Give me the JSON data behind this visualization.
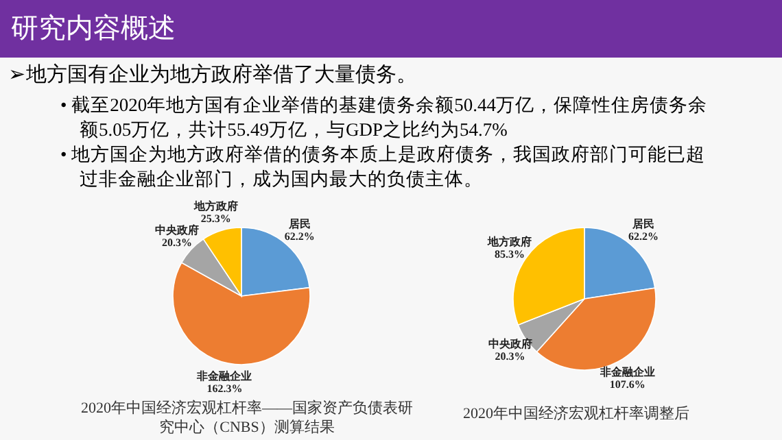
{
  "chart_data": [
    {
      "type": "other",
      "title": "研究内容概述",
      "annotations": [
        "➢地方国有企业为地方政府举借了大量债务。",
        "• 截至2020年地方国有企业举借的基建债务余额50.44万亿，保障性住房债务余额5.05万亿，共计55.49万亿，与GDP之比约为54.7%",
        "• 地方国企为地方政府举借的债务本质上是政府债务，我国政府部门可能已超过非金融企业部门，成为国内最大的负债主体。"
      ]
    },
    {
      "type": "pie",
      "title": "2020年中国经济宏观杠杆率——国家资产负债表研究中心（CNBS）测算结果",
      "categories": [
        "居民",
        "非金融企业",
        "中央政府",
        "地方政府"
      ],
      "values": [
        62.2,
        162.3,
        20.3,
        25.3
      ],
      "colors": [
        "#5b9bd5",
        "#ed7d31",
        "#a5a5a5",
        "#ffc000"
      ],
      "value_labels": [
        "62.2%",
        "162.3%",
        "20.3%",
        "25.3%"
      ]
    },
    {
      "type": "pie",
      "title": "2020年中国经济宏观杠杆率调整后",
      "categories": [
        "居民",
        "非金融企业",
        "中央政府",
        "地方政府"
      ],
      "values": [
        62.2,
        107.6,
        20.3,
        85.3
      ],
      "colors": [
        "#5b9bd5",
        "#ed7d31",
        "#a5a5a5",
        "#ffc000"
      ],
      "value_labels": [
        "62.2%",
        "107.6%",
        "20.3%",
        "85.3%"
      ]
    }
  ]
}
